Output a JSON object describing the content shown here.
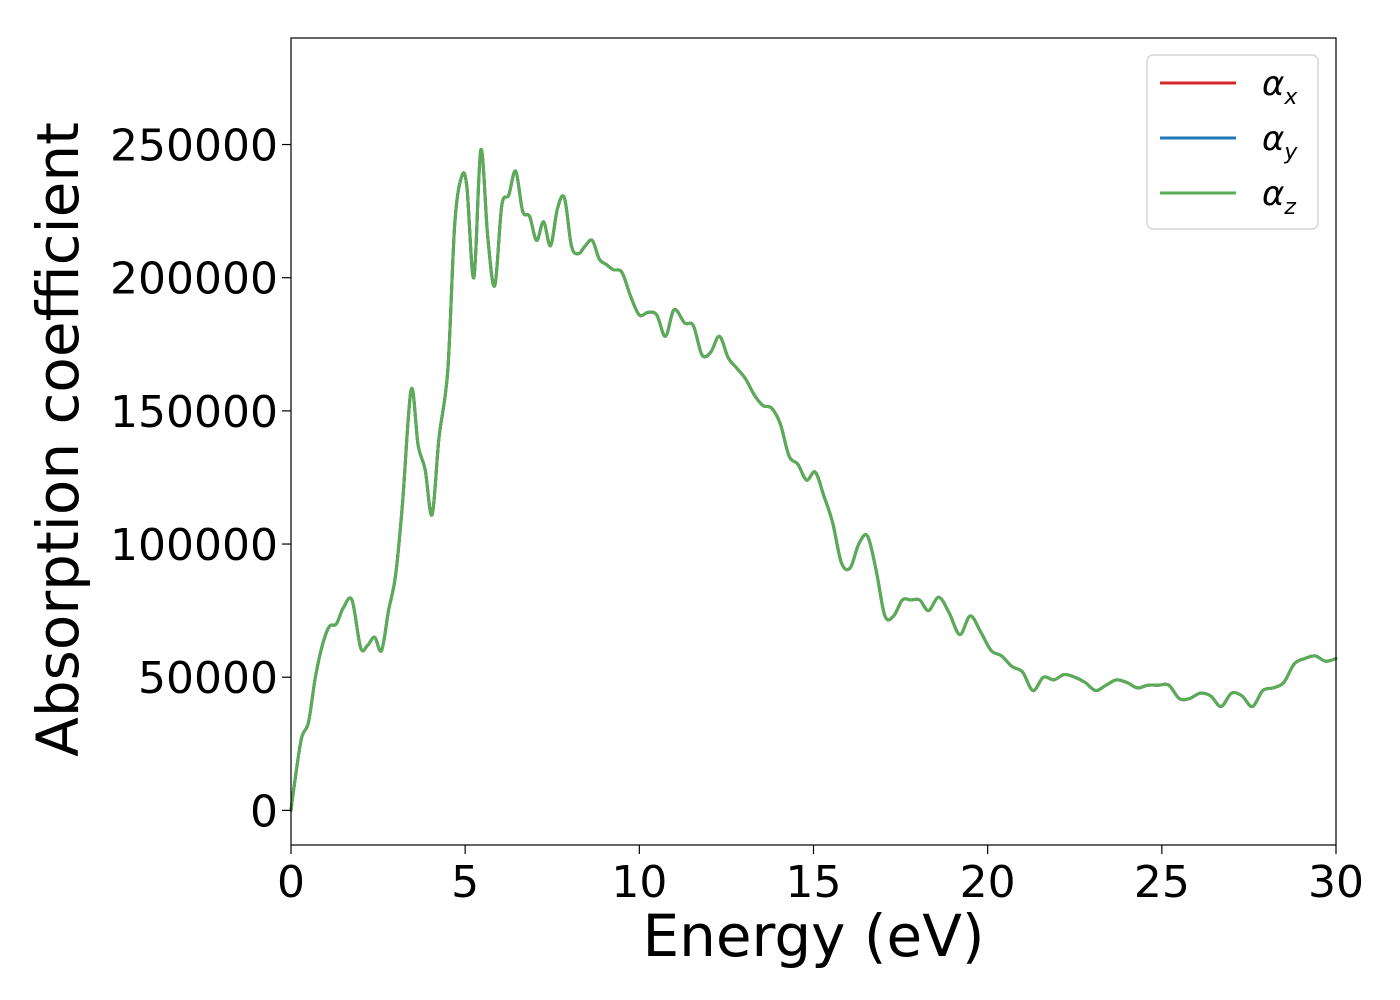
{
  "chart_data": {
    "type": "line",
    "title": "",
    "xlabel": "Energy (eV)",
    "ylabel": "Absorption coefficient",
    "xlim": [
      0,
      30
    ],
    "ylim": [
      -13000,
      290000
    ],
    "xticks": [
      0,
      5,
      10,
      15,
      20,
      25,
      30
    ],
    "xtick_labels": [
      "0",
      "5",
      "10",
      "15",
      "20",
      "25",
      "30"
    ],
    "yticks": [
      0,
      50000,
      100000,
      150000,
      200000,
      250000
    ],
    "ytick_labels": [
      "0",
      "50000",
      "100000",
      "150000",
      "200000",
      "250000"
    ],
    "grid": false,
    "legend_position": "top-right",
    "x": [
      0,
      0.1,
      0.3,
      0.5,
      0.7,
      0.9,
      1.1,
      1.3,
      1.5,
      1.75,
      2.0,
      2.2,
      2.4,
      2.6,
      2.8,
      3.0,
      3.2,
      3.45,
      3.65,
      3.85,
      4.05,
      4.25,
      4.5,
      4.7,
      4.9,
      5.05,
      5.25,
      5.45,
      5.65,
      5.85,
      6.05,
      6.25,
      6.45,
      6.65,
      6.85,
      7.05,
      7.25,
      7.45,
      7.65,
      7.85,
      8.05,
      8.25,
      8.45,
      8.65,
      8.85,
      9.05,
      9.25,
      9.5,
      9.75,
      10.0,
      10.25,
      10.5,
      10.75,
      11.0,
      11.3,
      11.55,
      11.8,
      12.05,
      12.3,
      12.55,
      12.8,
      13.05,
      13.3,
      13.55,
      13.8,
      14.05,
      14.3,
      14.55,
      14.8,
      15.05,
      15.3,
      15.55,
      15.8,
      16.05,
      16.3,
      16.55,
      16.8,
      17.05,
      17.3,
      17.55,
      17.8,
      18.05,
      18.3,
      18.6,
      18.9,
      19.2,
      19.5,
      19.8,
      20.1,
      20.4,
      20.7,
      21.0,
      21.3,
      21.6,
      21.9,
      22.2,
      22.5,
      22.8,
      23.1,
      23.4,
      23.7,
      24.0,
      24.3,
      24.6,
      24.9,
      25.2,
      25.5,
      25.8,
      26.1,
      26.4,
      26.7,
      27.0,
      27.3,
      27.6,
      27.9,
      28.2,
      28.5,
      28.8,
      29.1,
      29.4,
      29.7,
      30.0
    ],
    "series": [
      {
        "name": "α",
        "name_sub": "x",
        "color": "#d62728",
        "values": [
          0,
          10000,
          27000,
          33000,
          50000,
          62000,
          69000,
          70000,
          76000,
          79000,
          61000,
          62000,
          65000,
          60000,
          75000,
          88000,
          115000,
          158000,
          137000,
          128000,
          111000,
          140000,
          165000,
          220000,
          238000,
          234000,
          200000,
          248000,
          215000,
          197000,
          227000,
          231000,
          240000,
          225000,
          223000,
          214000,
          221000,
          212000,
          226000,
          230000,
          212000,
          209000,
          212000,
          214000,
          207000,
          205000,
          203000,
          202000,
          193000,
          186000,
          187000,
          186000,
          178000,
          188000,
          183000,
          182000,
          171000,
          172000,
          178000,
          170000,
          166000,
          162000,
          156000,
          152000,
          151000,
          145000,
          133000,
          130000,
          124000,
          127000,
          118000,
          108000,
          93000,
          91000,
          100000,
          103000,
          90000,
          73000,
          73000,
          79000,
          79000,
          79000,
          75000,
          80000,
          74000,
          66000,
          73000,
          67000,
          60000,
          58000,
          54000,
          52000,
          45000,
          50000,
          49000,
          51000,
          50000,
          48000,
          45000,
          47000,
          49000,
          48000,
          46000,
          47000,
          47000,
          47000,
          42000,
          42000,
          44000,
          43000,
          39000,
          44000,
          43000,
          39000,
          45000,
          46000,
          48000,
          55000,
          57000,
          58000,
          56000,
          57000
        ]
      },
      {
        "name": "α",
        "name_sub": "y",
        "color": "#1f77b4",
        "values": [
          0,
          10000,
          27000,
          33000,
          50000,
          62000,
          69000,
          70000,
          76000,
          79000,
          61000,
          62000,
          65000,
          60000,
          75000,
          88000,
          115000,
          158000,
          137000,
          128000,
          111000,
          140000,
          165000,
          220000,
          238000,
          234000,
          200000,
          248000,
          215000,
          197000,
          227000,
          231000,
          240000,
          225000,
          223000,
          214000,
          221000,
          212000,
          226000,
          230000,
          212000,
          209000,
          212000,
          214000,
          207000,
          205000,
          203000,
          202000,
          193000,
          186000,
          187000,
          186000,
          178000,
          188000,
          183000,
          182000,
          171000,
          172000,
          178000,
          170000,
          166000,
          162000,
          156000,
          152000,
          151000,
          145000,
          133000,
          130000,
          124000,
          127000,
          118000,
          108000,
          93000,
          91000,
          100000,
          103000,
          90000,
          73000,
          73000,
          79000,
          79000,
          79000,
          75000,
          80000,
          74000,
          66000,
          73000,
          67000,
          60000,
          58000,
          54000,
          52000,
          45000,
          50000,
          49000,
          51000,
          50000,
          48000,
          45000,
          47000,
          49000,
          48000,
          46000,
          47000,
          47000,
          47000,
          42000,
          42000,
          44000,
          43000,
          39000,
          44000,
          43000,
          39000,
          45000,
          46000,
          48000,
          55000,
          57000,
          58000,
          56000,
          57000
        ]
      },
      {
        "name": "α",
        "name_sub": "z",
        "color": "#5aad55",
        "values": [
          0,
          10000,
          27000,
          33000,
          50000,
          62000,
          69000,
          70000,
          76000,
          79000,
          61000,
          62000,
          65000,
          60000,
          75000,
          88000,
          115000,
          158000,
          137000,
          128000,
          111000,
          140000,
          165000,
          220000,
          238000,
          234000,
          200000,
          248000,
          215000,
          197000,
          227000,
          231000,
          240000,
          225000,
          223000,
          214000,
          221000,
          212000,
          226000,
          230000,
          212000,
          209000,
          212000,
          214000,
          207000,
          205000,
          203000,
          202000,
          193000,
          186000,
          187000,
          186000,
          178000,
          188000,
          183000,
          182000,
          171000,
          172000,
          178000,
          170000,
          166000,
          162000,
          156000,
          152000,
          151000,
          145000,
          133000,
          130000,
          124000,
          127000,
          118000,
          108000,
          93000,
          91000,
          100000,
          103000,
          90000,
          73000,
          73000,
          79000,
          79000,
          79000,
          75000,
          80000,
          74000,
          66000,
          73000,
          67000,
          60000,
          58000,
          54000,
          52000,
          45000,
          50000,
          49000,
          51000,
          50000,
          48000,
          45000,
          47000,
          49000,
          48000,
          46000,
          47000,
          47000,
          47000,
          42000,
          42000,
          44000,
          43000,
          39000,
          44000,
          43000,
          39000,
          45000,
          46000,
          48000,
          55000,
          57000,
          58000,
          56000,
          57000
        ]
      }
    ]
  }
}
